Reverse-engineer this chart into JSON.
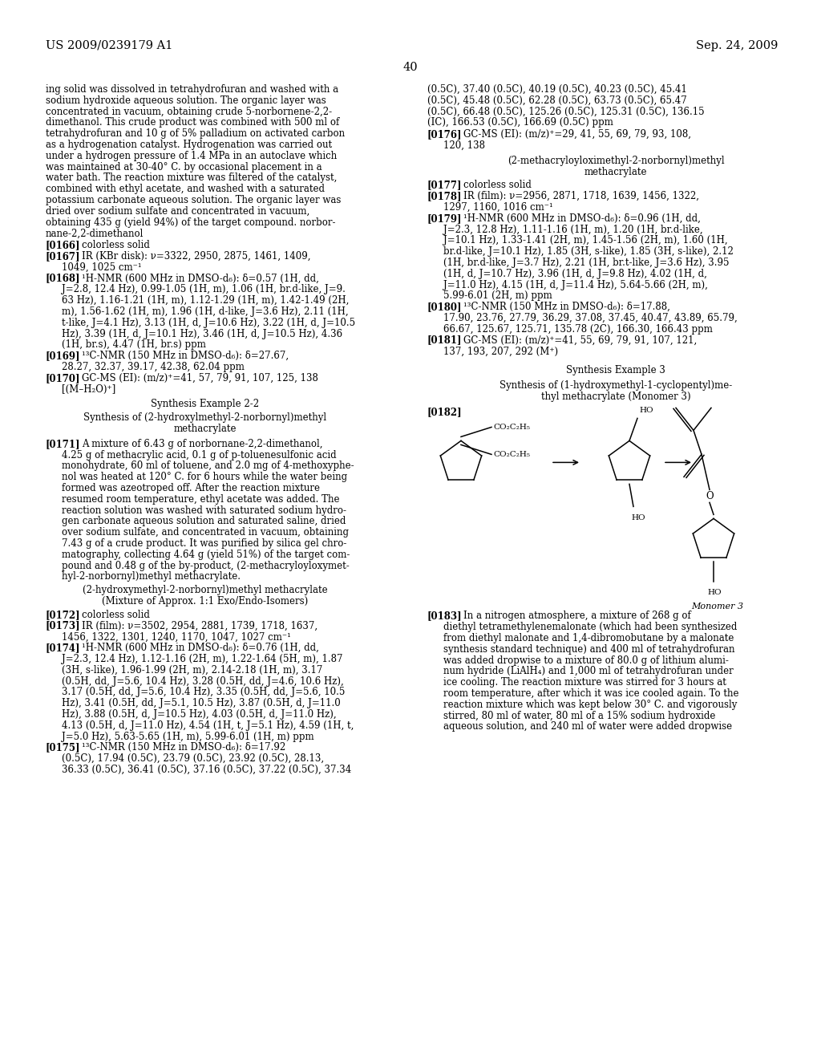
{
  "background_color": "#ffffff",
  "header_left": "US 2009/0239179 A1",
  "header_right": "Sep. 24, 2009",
  "page_number": "40",
  "col1_text": [
    "ing solid was dissolved in tetrahydrofuran and washed with a",
    "sodium hydroxide aqueous solution. The organic layer was",
    "concentrated in vacuum, obtaining crude 5-norbornene-2,2-",
    "dimethanol. This crude product was combined with 500 ml of",
    "tetrahydrofuran and 10 g of 5% palladium on activated carbon",
    "as a hydrogenation catalyst. Hydrogenation was carried out",
    "under a hydrogen pressure of 1.4 MPa in an autoclave which",
    "was maintained at 30-40° C. by occasional placement in a",
    "water bath. The reaction mixture was filtered of the catalyst,",
    "combined with ethyl acetate, and washed with a saturated",
    "potassium carbonate aqueous solution. The organic layer was",
    "dried over sodium sulfate and concentrated in vacuum,",
    "obtaining 435 g (yield 94%) of the target compound. norbor-",
    "nane-2,2-dimethanol"
  ],
  "col2_text_top": [
    "(0.5C), 37.40 (0.5C), 40.19 (0.5C), 40.23 (0.5C), 45.41",
    "(0.5C), 45.48 (0.5C), 62.28 (0.5C), 63.73 (0.5C), 65.47",
    "(0.5C), 66.48 (0.5C), 125.26 (0.5C), 125.31 (0.5C), 136.15",
    "(IC), 166.53 (0.5C), 166.69 (0.5C) ppm"
  ],
  "col2_synthesis3_title": "Synthesis Example 3",
  "col2_synthesis3_subtitle1": "Synthesis of (1-hydroxymethyl-1-cyclopentyl)me-",
  "col2_synthesis3_subtitle2": "thyl methacrylate (Monomer 3)"
}
